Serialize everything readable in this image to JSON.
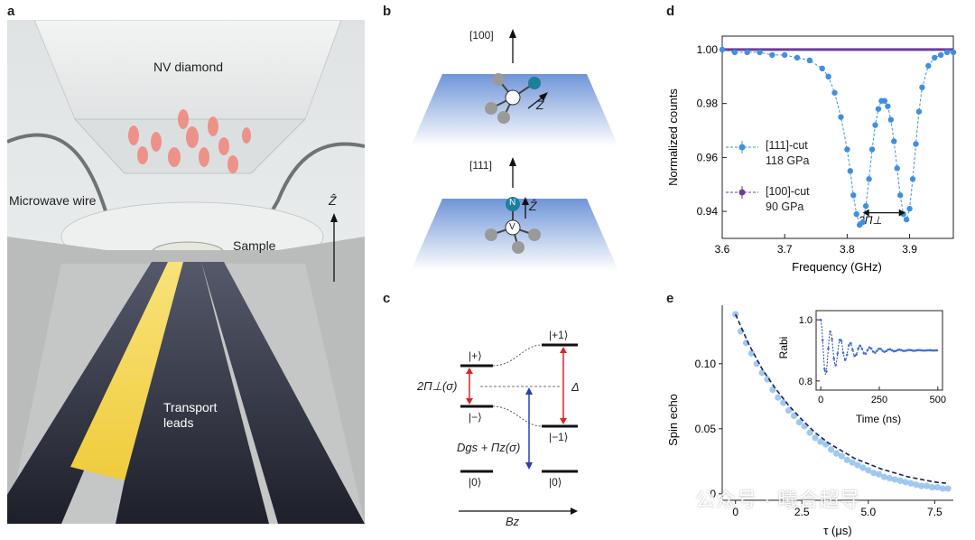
{
  "panels": {
    "a": "a",
    "b": "b",
    "c": "c",
    "d": "d",
    "e": "e"
  },
  "panel_a": {
    "diamond_label": "NV diamond",
    "wire_label": "Microwave wire",
    "sample_label": "Sample",
    "leads_label_1": "Transport",
    "leads_label_2": "leads",
    "z_label": "Ẑ"
  },
  "panel_b": {
    "top_direction": "[100]",
    "bottom_direction": "[111]",
    "z_label": "Ẑ",
    "n_label": "N",
    "v_label": "V"
  },
  "panel_c": {
    "state_plus": "|+⟩",
    "state_minus": "|−⟩",
    "state_zero_left": "|0⟩",
    "state_plus1": "|+1⟩",
    "state_minus1": "|−1⟩",
    "state_zero_right": "|0⟩",
    "splitting_label": "2Π⊥(σ)",
    "delta_label": "Δ",
    "dgs_label": "Dgs + Πz(σ)",
    "bz_label": "Bz"
  },
  "colors": {
    "blue_series": "#3f8fe0",
    "purple_series": "#6a3d9a",
    "red_arrow": "#d62728",
    "blue_arrow": "#2a3fb0",
    "fit_dashed": "#1a1f5c"
  },
  "chart_data": [
    {
      "panel": "d",
      "type": "line",
      "xlabel": "Frequency (GHz)",
      "ylabel": "Normalized counts",
      "xlim": [
        3.6,
        3.97
      ],
      "ylim": [
        0.93,
        1.005
      ],
      "xticks": [
        "3.6",
        "3.7",
        "3.8",
        "3.9"
      ],
      "yticks": [
        "0.94",
        "0.96",
        "0.98",
        "1.00"
      ],
      "annotation": "2Π⊥",
      "legend": [
        {
          "name": "[111]-cut",
          "pressure": "118 GPa",
          "color": "#3f8fe0"
        },
        {
          "name": "[100]-cut",
          "pressure": "90 GPa",
          "color": "#6a3d9a"
        }
      ],
      "series": [
        {
          "name": "[111]-cut",
          "x": [
            3.6,
            3.62,
            3.64,
            3.66,
            3.68,
            3.7,
            3.72,
            3.74,
            3.76,
            3.77,
            3.78,
            3.79,
            3.8,
            3.805,
            3.81,
            3.815,
            3.82,
            3.825,
            3.83,
            3.835,
            3.84,
            3.845,
            3.85,
            3.855,
            3.86,
            3.865,
            3.87,
            3.875,
            3.88,
            3.885,
            3.89,
            3.895,
            3.9,
            3.905,
            3.91,
            3.915,
            3.92,
            3.93,
            3.94,
            3.95,
            3.96,
            3.97
          ],
          "values": [
            1.0,
            0.999,
            0.999,
            0.999,
            0.998,
            0.998,
            0.997,
            0.996,
            0.993,
            0.99,
            0.984,
            0.975,
            0.963,
            0.955,
            0.946,
            0.939,
            0.935,
            0.936,
            0.942,
            0.952,
            0.963,
            0.972,
            0.978,
            0.981,
            0.981,
            0.979,
            0.974,
            0.966,
            0.956,
            0.946,
            0.939,
            0.937,
            0.941,
            0.952,
            0.965,
            0.977,
            0.986,
            0.994,
            0.997,
            0.998,
            0.999,
            0.999
          ]
        },
        {
          "name": "[100]-cut",
          "x": [
            3.6,
            3.65,
            3.7,
            3.75,
            3.8,
            3.85,
            3.9,
            3.95,
            3.97
          ],
          "values": [
            1.0,
            1.0,
            1.0,
            1.0,
            1.0,
            1.0,
            1.0,
            1.0,
            1.0
          ]
        }
      ]
    },
    {
      "panel": "e",
      "type": "scatter",
      "xlabel": "τ (μs)",
      "ylabel": "Spin echo",
      "xlim": [
        -0.5,
        8.2
      ],
      "ylim": [
        -0.005,
        0.145
      ],
      "xticks": [
        "0",
        "2.5",
        "5.0",
        "7.5"
      ],
      "yticks": [
        "0",
        "0.05",
        "0.10"
      ],
      "series": [
        {
          "name": "data",
          "x": [
            0,
            0.2,
            0.4,
            0.6,
            0.8,
            1.0,
            1.2,
            1.4,
            1.6,
            1.8,
            2.0,
            2.2,
            2.4,
            2.6,
            2.8,
            3.0,
            3.2,
            3.4,
            3.6,
            3.8,
            4.0,
            4.2,
            4.4,
            4.6,
            4.8,
            5.0,
            5.2,
            5.4,
            5.6,
            5.8,
            6.0,
            6.2,
            6.4,
            6.6,
            6.8,
            7.0,
            7.2,
            7.4,
            7.6,
            7.8,
            8.0
          ],
          "values": [
            0.138,
            0.125,
            0.116,
            0.108,
            0.1,
            0.093,
            0.088,
            0.08,
            0.074,
            0.07,
            0.064,
            0.06,
            0.055,
            0.052,
            0.047,
            0.043,
            0.04,
            0.038,
            0.034,
            0.031,
            0.029,
            0.026,
            0.024,
            0.022,
            0.02,
            0.018,
            0.016,
            0.015,
            0.013,
            0.012,
            0.011,
            0.01,
            0.009,
            0.008,
            0.007,
            0.006,
            0.006,
            0.005,
            0.005,
            0.004,
            0.004
          ]
        },
        {
          "name": "fit",
          "x": [
            0,
            0.5,
            1,
            1.5,
            2,
            2.5,
            3,
            3.5,
            4,
            4.5,
            5,
            5.5,
            6,
            6.5,
            7,
            7.5,
            8
          ],
          "values": [
            0.138,
            0.115,
            0.096,
            0.081,
            0.068,
            0.057,
            0.047,
            0.039,
            0.033,
            0.027,
            0.023,
            0.019,
            0.016,
            0.013,
            0.011,
            0.009,
            0.008
          ]
        }
      ]
    },
    {
      "panel": "e-inset",
      "type": "line",
      "xlabel": "Time (ns)",
      "ylabel": "Rabi",
      "xlim": [
        -20,
        520
      ],
      "ylim": [
        0.77,
        1.03
      ],
      "xticks": [
        "0",
        "250",
        "500"
      ],
      "yticks": [
        "0.8",
        "1.0"
      ],
      "damping_ns": 90,
      "period_ns": 42,
      "offset": 0.9,
      "amplitude": 0.1
    }
  ],
  "watermark": "公众号 · 曦合超导"
}
